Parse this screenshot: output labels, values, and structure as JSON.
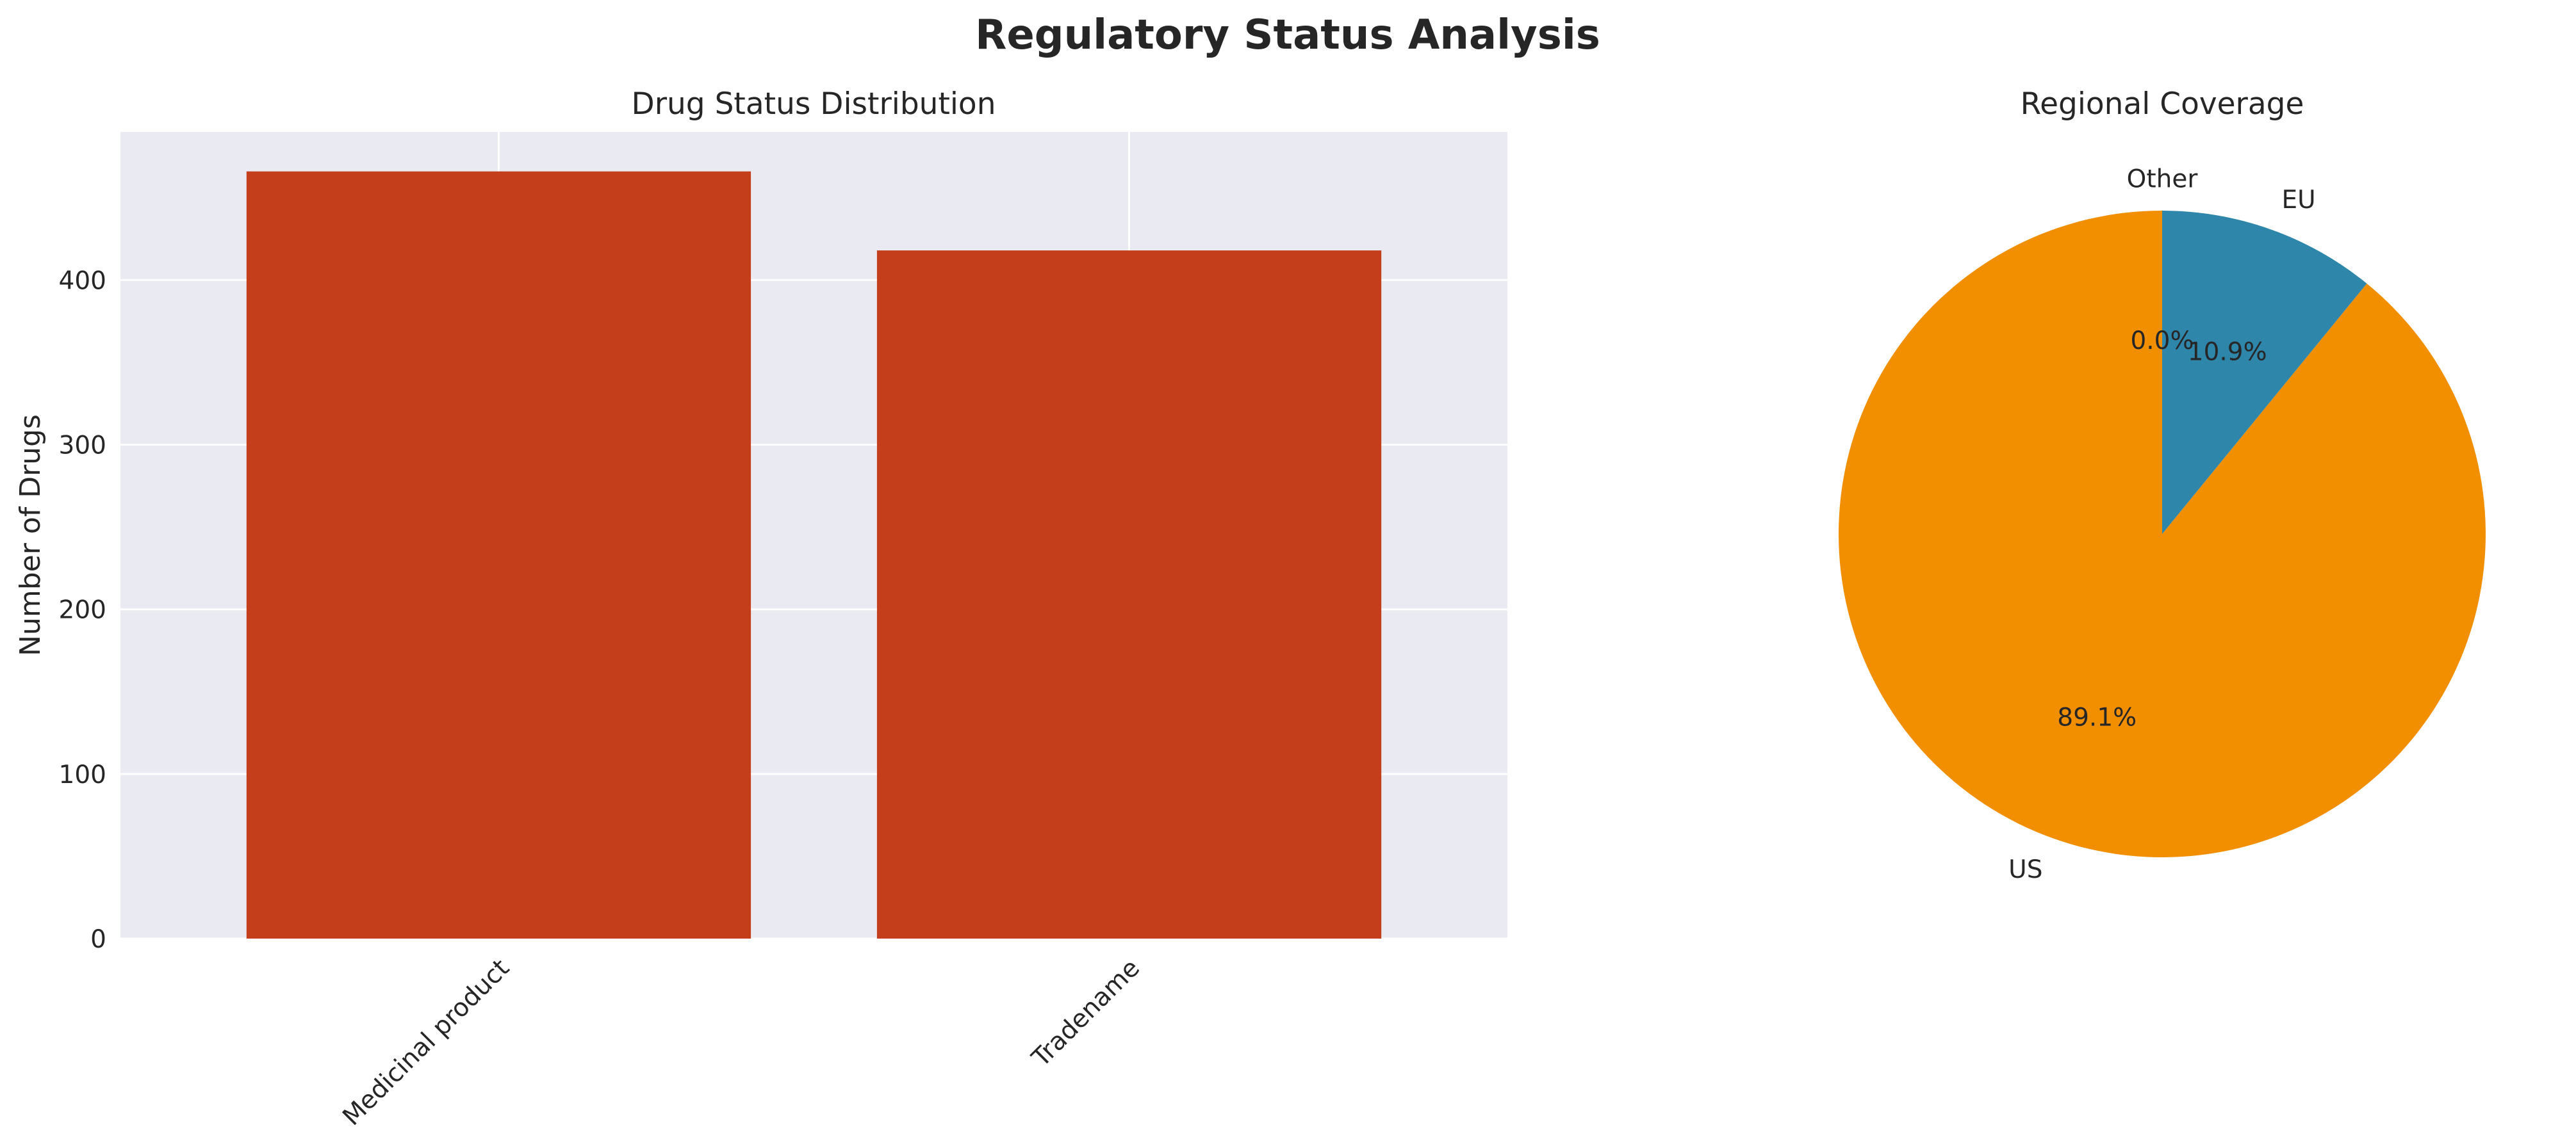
{
  "figure": {
    "title": "Regulatory Status Analysis"
  },
  "chart_data": [
    {
      "type": "bar",
      "title": "Drug Status Distribution",
      "xlabel": "",
      "ylabel": "Number of Drugs",
      "categories": [
        "Medicinal product",
        "Tradename"
      ],
      "values": [
        466,
        418
      ],
      "ylim": [
        0,
        490
      ],
      "yticks": [
        0,
        100,
        200,
        300,
        400
      ],
      "grid": true,
      "bar_color": "#C43E1C",
      "background": "#EAEAF2"
    },
    {
      "type": "pie",
      "title": "Regional Coverage",
      "labels": [
        "US",
        "EU",
        "Other"
      ],
      "values": [
        89.1,
        10.9,
        0.0
      ],
      "autopct": [
        "89.1%",
        "10.9%",
        "0.0%"
      ],
      "colors": [
        "#F18F01",
        "#2E86AB",
        "#A23B72"
      ],
      "start_angle": 90
    }
  ]
}
